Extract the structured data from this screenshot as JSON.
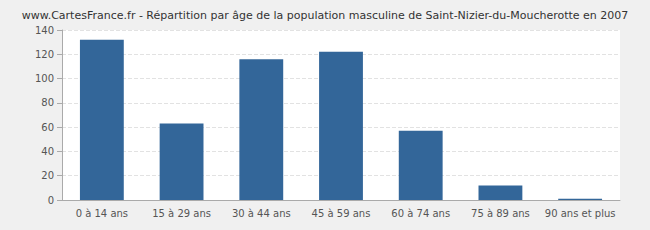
{
  "chart_data": {
    "type": "bar",
    "title": "www.CartesFrance.fr - Répartition par âge de la population masculine de Saint-Nizier-du-Moucherotte en 2007",
    "categories": [
      "0 à 14 ans",
      "15 à 29 ans",
      "30 à 44 ans",
      "45 à 59 ans",
      "60 à 74 ans",
      "75 à 89 ans",
      "90 ans et plus"
    ],
    "values": [
      132,
      63,
      116,
      122,
      57,
      12,
      1
    ],
    "color": "#336699",
    "ylim": [
      0,
      140
    ],
    "yticks": [
      0,
      20,
      40,
      60,
      80,
      100,
      120,
      140
    ],
    "grid": true
  }
}
